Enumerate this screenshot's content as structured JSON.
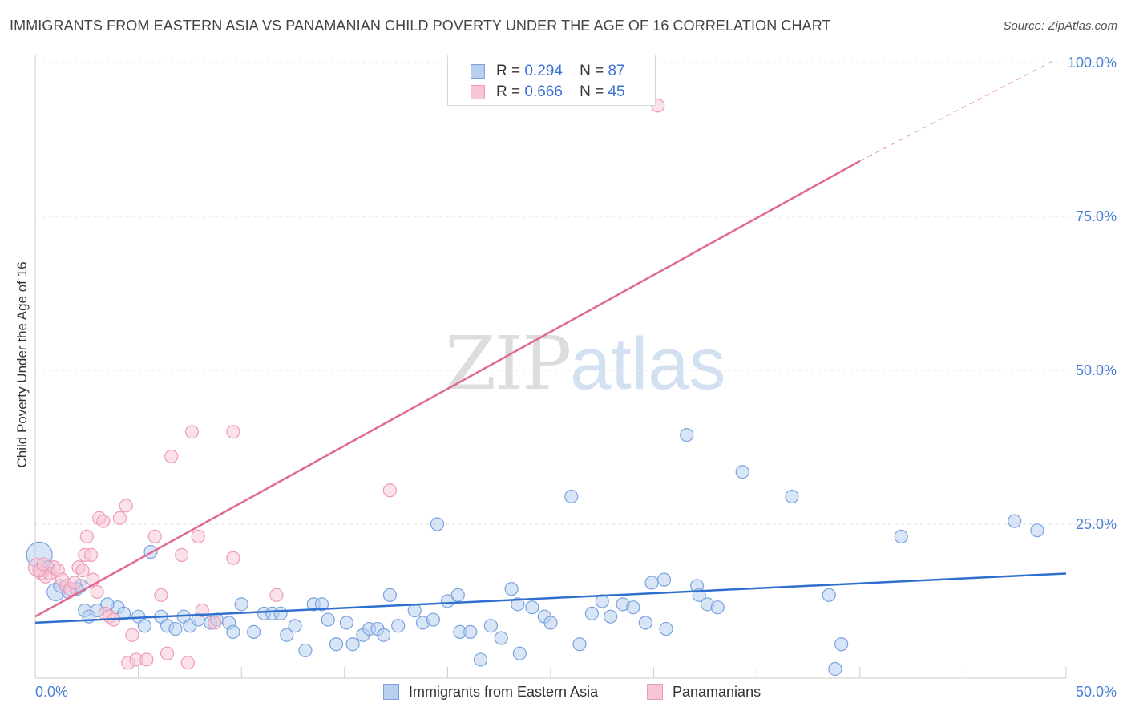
{
  "header": {
    "title": "IMMIGRANTS FROM EASTERN ASIA VS PANAMANIAN CHILD POVERTY UNDER THE AGE OF 16 CORRELATION CHART",
    "source": "Source: ZipAtlas.com"
  },
  "watermark": {
    "zip": "ZIP",
    "atlas": "atlas"
  },
  "legend": {
    "r_label": "R =",
    "n_label": "N =",
    "series1": {
      "r": "0.294",
      "n": "87"
    },
    "series2": {
      "r": "0.666",
      "n": "45"
    }
  },
  "colors": {
    "blue_fill": "#b8cff0",
    "blue_stroke": "#7aa3de",
    "blue_line": "#2f6fce",
    "pink_fill": "#f7c5d5",
    "pink_stroke": "#ee9ab6",
    "pink_line": "#e06a93",
    "axis_text": "#4a7fd4",
    "grid": "#e2e2e2"
  },
  "chart_data": {
    "type": "scatter",
    "title": "IMMIGRANTS FROM EASTERN ASIA VS PANAMANIAN CHILD POVERTY UNDER THE AGE OF 16 CORRELATION CHART",
    "xlabel": "",
    "ylabel": "Child Poverty Under the Age of 16",
    "xlim": [
      0,
      50
    ],
    "ylim": [
      0,
      100
    ],
    "x_tick_labels": [
      "0.0%",
      "50.0%"
    ],
    "y_tick_labels": [
      "25.0%",
      "50.0%",
      "75.0%",
      "100.0%"
    ],
    "y_ticks": [
      25,
      50,
      75,
      100
    ],
    "grid": true,
    "legend_position": "top-center",
    "series": [
      {
        "name": "Immigrants from Eastern Asia",
        "color": "#7aa3de",
        "r": 0.294,
        "n": 87,
        "trend": {
          "x": [
            0,
            50
          ],
          "y": [
            9.0,
            17.0
          ]
        },
        "points": [
          [
            0.2,
            20.0
          ],
          [
            1.0,
            14.0
          ],
          [
            1.6,
            14.0
          ],
          [
            1.2,
            15.0
          ],
          [
            0.6,
            18.0
          ],
          [
            2.2,
            15.0
          ],
          [
            2.4,
            11.0
          ],
          [
            3.0,
            11.0
          ],
          [
            2.6,
            10.0
          ],
          [
            4.0,
            11.5
          ],
          [
            4.3,
            10.5
          ],
          [
            5.0,
            10.0
          ],
          [
            5.3,
            8.5
          ],
          [
            5.6,
            20.5
          ],
          [
            6.1,
            10.0
          ],
          [
            6.4,
            8.5
          ],
          [
            6.8,
            8.0
          ],
          [
            7.2,
            10.0
          ],
          [
            7.5,
            8.5
          ],
          [
            7.9,
            9.5
          ],
          [
            8.5,
            9.0
          ],
          [
            8.8,
            9.5
          ],
          [
            9.4,
            9.0
          ],
          [
            9.6,
            7.5
          ],
          [
            10.0,
            12.0
          ],
          [
            10.6,
            7.5
          ],
          [
            11.1,
            10.5
          ],
          [
            11.5,
            10.5
          ],
          [
            11.9,
            10.5
          ],
          [
            12.2,
            7.0
          ],
          [
            12.6,
            8.5
          ],
          [
            13.1,
            4.5
          ],
          [
            13.5,
            12.0
          ],
          [
            13.9,
            12.0
          ],
          [
            14.2,
            9.5
          ],
          [
            14.6,
            5.5
          ],
          [
            15.1,
            9.0
          ],
          [
            15.4,
            5.5
          ],
          [
            15.9,
            7.0
          ],
          [
            16.2,
            8.0
          ],
          [
            16.6,
            8.0
          ],
          [
            16.9,
            7.0
          ],
          [
            17.2,
            13.5
          ],
          [
            17.6,
            8.5
          ],
          [
            18.4,
            11.0
          ],
          [
            18.8,
            9.0
          ],
          [
            19.3,
            9.5
          ],
          [
            19.5,
            25.0
          ],
          [
            20.0,
            12.5
          ],
          [
            20.5,
            13.5
          ],
          [
            20.6,
            7.5
          ],
          [
            21.1,
            7.5
          ],
          [
            21.6,
            3.0
          ],
          [
            22.1,
            8.5
          ],
          [
            22.6,
            6.5
          ],
          [
            23.1,
            14.5
          ],
          [
            23.5,
            4.0
          ],
          [
            23.4,
            12.0
          ],
          [
            24.1,
            11.5
          ],
          [
            24.7,
            10.0
          ],
          [
            25.0,
            9.0
          ],
          [
            26.0,
            29.5
          ],
          [
            26.4,
            5.5
          ],
          [
            27.0,
            10.5
          ],
          [
            27.5,
            12.5
          ],
          [
            27.9,
            10.0
          ],
          [
            28.5,
            12.0
          ],
          [
            29.0,
            11.5
          ],
          [
            29.6,
            9.0
          ],
          [
            29.9,
            15.5
          ],
          [
            30.5,
            16.0
          ],
          [
            30.6,
            8.0
          ],
          [
            31.6,
            39.5
          ],
          [
            32.1,
            15.0
          ],
          [
            32.2,
            13.5
          ],
          [
            32.6,
            12.0
          ],
          [
            33.1,
            11.5
          ],
          [
            34.3,
            33.5
          ],
          [
            36.7,
            29.5
          ],
          [
            38.5,
            13.5
          ],
          [
            39.1,
            5.5
          ],
          [
            38.8,
            1.5
          ],
          [
            42.0,
            23.0
          ],
          [
            47.5,
            25.5
          ],
          [
            48.6,
            24.0
          ],
          [
            2.0,
            14.5
          ],
          [
            3.5,
            12.0
          ]
        ]
      },
      {
        "name": "Panamanians",
        "color": "#ee9ab6",
        "r": 0.666,
        "n": 45,
        "trend": {
          "x": [
            0,
            40
          ],
          "y": [
            10.0,
            84.0
          ],
          "extended_to": [
            49.5,
            100.5
          ]
        },
        "points": [
          [
            0.1,
            18.0
          ],
          [
            0.3,
            17.0
          ],
          [
            0.5,
            16.5
          ],
          [
            0.7,
            17.0
          ],
          [
            0.9,
            18.0
          ],
          [
            1.1,
            17.5
          ],
          [
            1.3,
            16.0
          ],
          [
            1.5,
            15.0
          ],
          [
            1.7,
            14.5
          ],
          [
            1.9,
            15.5
          ],
          [
            2.1,
            18.0
          ],
          [
            2.3,
            17.5
          ],
          [
            2.4,
            20.0
          ],
          [
            2.5,
            23.0
          ],
          [
            2.7,
            20.0
          ],
          [
            2.8,
            16.0
          ],
          [
            3.0,
            14.0
          ],
          [
            3.1,
            26.0
          ],
          [
            3.3,
            25.5
          ],
          [
            3.4,
            10.5
          ],
          [
            3.6,
            10.0
          ],
          [
            3.8,
            9.5
          ],
          [
            4.1,
            26.0
          ],
          [
            4.4,
            28.0
          ],
          [
            4.5,
            2.5
          ],
          [
            4.7,
            7.0
          ],
          [
            4.9,
            3.0
          ],
          [
            5.4,
            3.0
          ],
          [
            5.8,
            23.0
          ],
          [
            6.1,
            13.5
          ],
          [
            6.4,
            4.0
          ],
          [
            6.6,
            36.0
          ],
          [
            7.1,
            20.0
          ],
          [
            7.4,
            2.5
          ],
          [
            7.6,
            40.0
          ],
          [
            7.9,
            23.0
          ],
          [
            8.1,
            11.0
          ],
          [
            8.7,
            9.0
          ],
          [
            9.6,
            40.0
          ],
          [
            9.6,
            19.5
          ],
          [
            11.7,
            13.5
          ],
          [
            17.2,
            30.5
          ],
          [
            30.2,
            93.0
          ],
          [
            0.2,
            17.5
          ],
          [
            0.4,
            18.5
          ]
        ]
      }
    ]
  },
  "bottom_legend": {
    "series1_label": "Immigrants from Eastern Asia",
    "series2_label": "Panamanians"
  }
}
